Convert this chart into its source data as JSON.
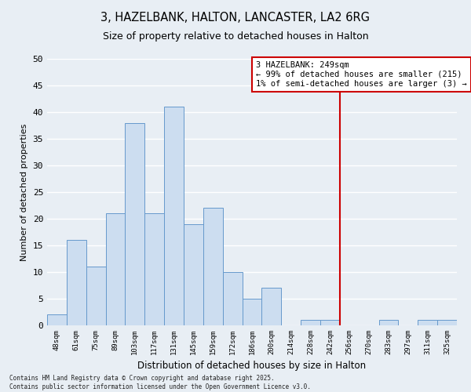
{
  "title": "3, HAZELBANK, HALTON, LANCASTER, LA2 6RG",
  "subtitle": "Size of property relative to detached houses in Halton",
  "xlabel": "Distribution of detached houses by size in Halton",
  "ylabel": "Number of detached properties",
  "bin_labels": [
    "48sqm",
    "61sqm",
    "75sqm",
    "89sqm",
    "103sqm",
    "117sqm",
    "131sqm",
    "145sqm",
    "159sqm",
    "172sqm",
    "186sqm",
    "200sqm",
    "214sqm",
    "228sqm",
    "242sqm",
    "256sqm",
    "270sqm",
    "283sqm",
    "297sqm",
    "311sqm",
    "325sqm"
  ],
  "bar_heights": [
    2,
    16,
    11,
    21,
    38,
    21,
    41,
    19,
    22,
    10,
    5,
    7,
    0,
    1,
    1,
    0,
    0,
    1,
    0,
    1,
    1
  ],
  "bar_color": "#ccddf0",
  "bar_edge_color": "#6699cc",
  "vline_x": 14.5,
  "vline_color": "#cc0000",
  "annotation_title": "3 HAZELBANK: 249sqm",
  "annotation_line1": "← 99% of detached houses are smaller (215)",
  "annotation_line2": "1% of semi-detached houses are larger (3) →",
  "annotation_box_color": "#ffffff",
  "annotation_box_edge": "#cc0000",
  "ylim": [
    0,
    50
  ],
  "yticks": [
    0,
    5,
    10,
    15,
    20,
    25,
    30,
    35,
    40,
    45,
    50
  ],
  "bg_color": "#e8eef4",
  "grid_color": "#ffffff",
  "footer_line1": "Contains HM Land Registry data © Crown copyright and database right 2025.",
  "footer_line2": "Contains public sector information licensed under the Open Government Licence v3.0."
}
